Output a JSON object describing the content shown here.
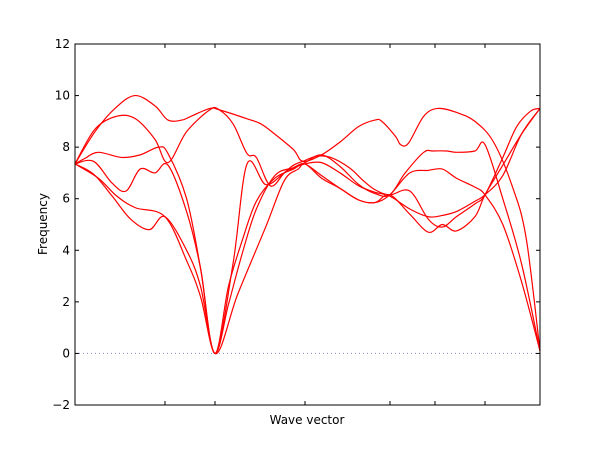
{
  "chart_data": {
    "type": "line",
    "title": "",
    "xlabel": "Wave vector",
    "ylabel": "Frequency",
    "xlim": [
      0,
      1
    ],
    "ylim": [
      -2,
      12
    ],
    "yticks": [
      -2,
      0,
      2,
      4,
      6,
      8,
      10,
      12
    ],
    "ytick_labels": [
      "−2",
      "0",
      "2",
      "4",
      "6",
      "8",
      "10",
      "12"
    ],
    "xtick_positions": [
      0.1935,
      0.3011,
      0.4946,
      0.6774,
      0.7742,
      0.8817
    ],
    "grid": false,
    "legend": "none",
    "series_color": "#ff0000",
    "zero_line_color": "#8888cc",
    "series": [
      {
        "values": [
          [
            0,
            7.35
          ],
          [
            0.043,
            8.6
          ],
          [
            0.086,
            9.5
          ],
          [
            0.129,
            10.0
          ],
          [
            0.172,
            9.6
          ],
          [
            0.2,
            9.05
          ],
          [
            0.23,
            9.05
          ],
          [
            0.25,
            9.2
          ],
          [
            0.29,
            9.5
          ],
          [
            0.31,
            9.45
          ],
          [
            0.37,
            9.1
          ],
          [
            0.4,
            8.9
          ],
          [
            0.43,
            8.5
          ],
          [
            0.47,
            7.9
          ],
          [
            0.49,
            7.45
          ],
          [
            0.53,
            7.7
          ],
          [
            0.57,
            8.2
          ],
          [
            0.61,
            8.8
          ],
          [
            0.645,
            9.05
          ],
          [
            0.66,
            9.0
          ],
          [
            0.69,
            8.4
          ],
          [
            0.7,
            8.1
          ],
          [
            0.717,
            8.15
          ],
          [
            0.75,
            9.2
          ],
          [
            0.78,
            9.5
          ],
          [
            0.82,
            9.35
          ],
          [
            0.86,
            9.0
          ],
          [
            0.9,
            8.2
          ],
          [
            0.94,
            6.5
          ],
          [
            0.97,
            4.5
          ],
          [
            1.0,
            0.1
          ]
        ]
      },
      {
        "values": [
          [
            0,
            7.35
          ],
          [
            0.043,
            8.7
          ],
          [
            0.09,
            9.2
          ],
          [
            0.13,
            9.1
          ],
          [
            0.172,
            8.3
          ],
          [
            0.2,
            7.4
          ],
          [
            0.24,
            8.6
          ],
          [
            0.29,
            9.45
          ],
          [
            0.31,
            9.45
          ],
          [
            0.34,
            8.9
          ],
          [
            0.37,
            7.75
          ],
          [
            0.39,
            7.6
          ],
          [
            0.42,
            6.5
          ],
          [
            0.45,
            7.0
          ],
          [
            0.47,
            7.3
          ],
          [
            0.49,
            7.45
          ],
          [
            0.52,
            7.65
          ],
          [
            0.55,
            7.6
          ],
          [
            0.59,
            7.2
          ],
          [
            0.62,
            6.7
          ],
          [
            0.645,
            6.35
          ],
          [
            0.677,
            6.15
          ],
          [
            0.72,
            6.3
          ],
          [
            0.76,
            5.2
          ],
          [
            0.79,
            4.9
          ],
          [
            0.82,
            5.3
          ],
          [
            0.86,
            5.8
          ],
          [
            0.8817,
            6.15
          ],
          [
            0.92,
            7.6
          ],
          [
            0.95,
            8.8
          ],
          [
            0.98,
            9.4
          ],
          [
            1.0,
            9.5
          ]
        ]
      },
      {
        "values": [
          [
            0,
            7.35
          ],
          [
            0.02,
            7.55
          ],
          [
            0.05,
            7.8
          ],
          [
            0.1,
            7.6
          ],
          [
            0.14,
            7.7
          ],
          [
            0.18,
            8.0
          ],
          [
            0.2,
            7.75
          ],
          [
            0.24,
            6.0
          ],
          [
            0.27,
            3.3
          ],
          [
            0.3011,
            0.0
          ],
          [
            0.35,
            2.3
          ],
          [
            0.41,
            4.9
          ],
          [
            0.45,
            6.7
          ],
          [
            0.48,
            7.15
          ],
          [
            0.4946,
            7.35
          ],
          [
            0.53,
            6.9
          ],
          [
            0.57,
            6.4
          ],
          [
            0.61,
            5.95
          ],
          [
            0.645,
            5.85
          ],
          [
            0.677,
            6.15
          ],
          [
            0.72,
            5.4
          ],
          [
            0.76,
            4.7
          ],
          [
            0.79,
            5.0
          ],
          [
            0.82,
            4.75
          ],
          [
            0.86,
            5.3
          ],
          [
            0.8817,
            6.15
          ],
          [
            0.92,
            7.3
          ],
          [
            0.96,
            8.5
          ],
          [
            1.0,
            9.5
          ]
        ]
      },
      {
        "values": [
          [
            0,
            7.35
          ],
          [
            0.04,
            7.45
          ],
          [
            0.08,
            6.6
          ],
          [
            0.11,
            6.3
          ],
          [
            0.14,
            7.15
          ],
          [
            0.172,
            7.0
          ],
          [
            0.2,
            7.3
          ],
          [
            0.24,
            5.5
          ],
          [
            0.27,
            3.3
          ],
          [
            0.3011,
            0.0
          ],
          [
            0.34,
            3.5
          ],
          [
            0.37,
            7.35
          ],
          [
            0.41,
            6.55
          ],
          [
            0.45,
            7.0
          ],
          [
            0.48,
            7.3
          ],
          [
            0.4946,
            7.4
          ],
          [
            0.53,
            7.7
          ],
          [
            0.57,
            7.25
          ],
          [
            0.61,
            6.55
          ],
          [
            0.645,
            6.2
          ],
          [
            0.677,
            6.15
          ],
          [
            0.71,
            7.0
          ],
          [
            0.75,
            7.8
          ],
          [
            0.77,
            7.85
          ],
          [
            0.8,
            7.85
          ],
          [
            0.82,
            7.8
          ],
          [
            0.86,
            7.85
          ],
          [
            0.8817,
            8.1
          ],
          [
            0.92,
            6.0
          ],
          [
            0.96,
            3.5
          ],
          [
            1.0,
            0.1
          ]
        ]
      },
      {
        "values": [
          [
            0,
            7.35
          ],
          [
            0.04,
            6.95
          ],
          [
            0.08,
            6.1
          ],
          [
            0.12,
            5.2
          ],
          [
            0.16,
            4.8
          ],
          [
            0.1935,
            5.3
          ],
          [
            0.24,
            4.0
          ],
          [
            0.27,
            2.6
          ],
          [
            0.3011,
            0.0
          ],
          [
            0.33,
            2.6
          ],
          [
            0.36,
            4.4
          ],
          [
            0.39,
            5.9
          ],
          [
            0.43,
            6.8
          ],
          [
            0.47,
            7.15
          ],
          [
            0.4946,
            7.35
          ],
          [
            0.53,
            6.8
          ],
          [
            0.57,
            6.4
          ],
          [
            0.61,
            5.95
          ],
          [
            0.645,
            5.85
          ],
          [
            0.677,
            6.15
          ],
          [
            0.72,
            7.0
          ],
          [
            0.76,
            7.1
          ],
          [
            0.79,
            7.15
          ],
          [
            0.82,
            6.8
          ],
          [
            0.86,
            6.45
          ],
          [
            0.8817,
            6.15
          ],
          [
            0.92,
            5.0
          ],
          [
            0.96,
            2.8
          ],
          [
            1.0,
            0.1
          ]
        ]
      },
      {
        "values": [
          [
            0,
            7.35
          ],
          [
            0.05,
            6.8
          ],
          [
            0.09,
            6.1
          ],
          [
            0.13,
            5.65
          ],
          [
            0.1935,
            5.3
          ],
          [
            0.24,
            3.6
          ],
          [
            0.27,
            2.2
          ],
          [
            0.3011,
            0.0
          ],
          [
            0.33,
            1.9
          ],
          [
            0.36,
            3.9
          ],
          [
            0.39,
            5.6
          ],
          [
            0.43,
            6.9
          ],
          [
            0.47,
            7.2
          ],
          [
            0.4946,
            7.35
          ],
          [
            0.53,
            7.4
          ],
          [
            0.57,
            7.0
          ],
          [
            0.61,
            6.5
          ],
          [
            0.645,
            6.25
          ],
          [
            0.677,
            6.1
          ],
          [
            0.72,
            5.6
          ],
          [
            0.76,
            5.3
          ],
          [
            0.79,
            5.35
          ],
          [
            0.82,
            5.5
          ],
          [
            0.86,
            5.9
          ],
          [
            0.8817,
            6.15
          ],
          [
            0.92,
            6.9
          ],
          [
            0.96,
            8.5
          ],
          [
            1.0,
            9.5
          ]
        ]
      }
    ]
  }
}
